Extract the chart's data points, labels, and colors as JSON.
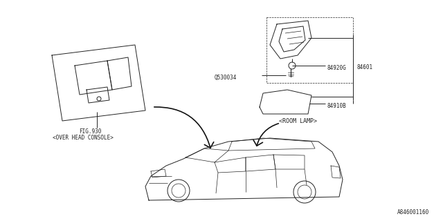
{
  "title": "",
  "bg_color": "#ffffff",
  "line_color": "#222222",
  "text_color": "#222222",
  "diagram_id": "A846001160",
  "labels": {
    "fig930": "FIG.930",
    "overhead_console": "<OVER HEAD CONSOLE>",
    "room_lamp": "<ROOM LAMP>",
    "part_84920G": "84920G",
    "part_84601": "84601",
    "part_84910B": "84910B",
    "part_Q530034": "Q530034"
  }
}
